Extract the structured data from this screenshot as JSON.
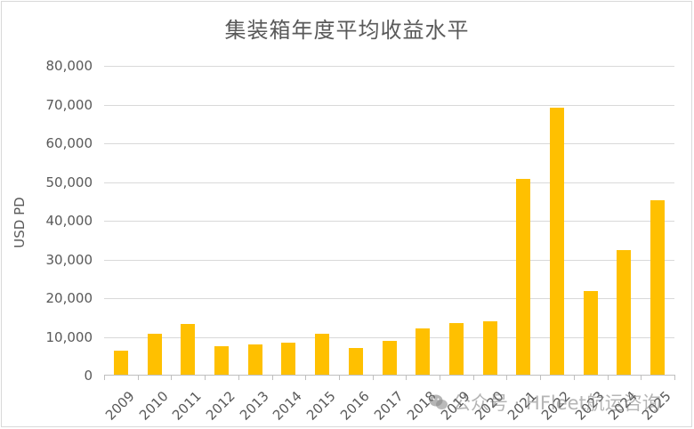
{
  "chart_data": {
    "type": "bar",
    "title": "集装箱年度平均收益水平",
    "xlabel": "",
    "ylabel": "USD PD",
    "ylim": [
      0,
      80000
    ],
    "yticks": [
      0,
      10000,
      20000,
      30000,
      40000,
      50000,
      60000,
      70000,
      80000
    ],
    "ytick_labels": [
      "0",
      "10,000",
      "20,000",
      "30,000",
      "40,000",
      "50,000",
      "60,000",
      "70,000",
      "80,000"
    ],
    "grid": true,
    "legend": null,
    "bar_color": "#FFC000",
    "categories": [
      "2009",
      "2010",
      "2011",
      "2012",
      "2013",
      "2014",
      "2015",
      "2016",
      "2017",
      "2018",
      "2019",
      "2020",
      "2021",
      "2022",
      "2023",
      "2024",
      "2025"
    ],
    "values": [
      6400,
      10900,
      13400,
      7500,
      8000,
      8600,
      10700,
      7100,
      9000,
      12300,
      13600,
      14000,
      50800,
      69100,
      21900,
      32500,
      45300
    ]
  },
  "watermark": {
    "icon": "wechat-icon",
    "text": "公众号 · HFleet航运咨询"
  }
}
